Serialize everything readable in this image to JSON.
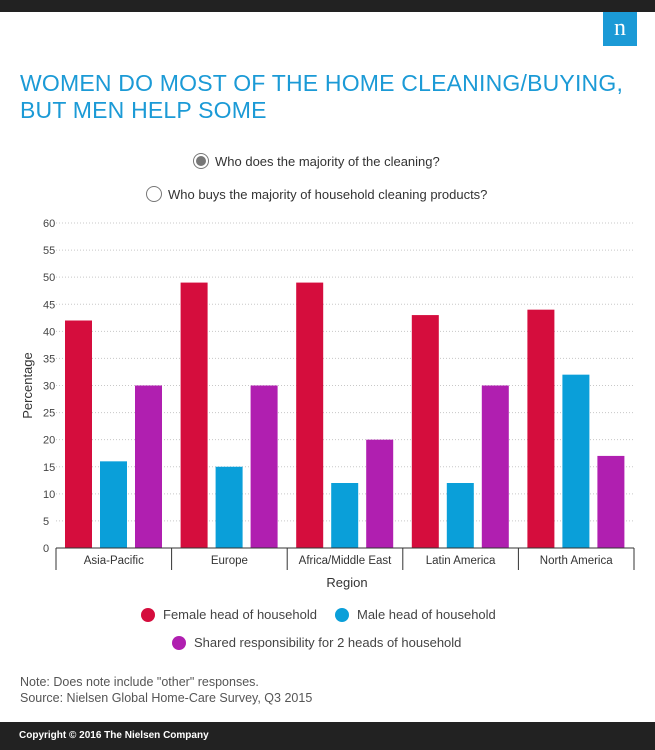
{
  "brand": {
    "logo_letter": "n",
    "color": "#1b9ad6"
  },
  "title": "WOMEN DO MOST OF THE HOME CLEANING/BUYING, BUT MEN HELP SOME",
  "toggle": {
    "options": [
      "Who does the majority of the cleaning?",
      "Who buys the majority of household cleaning products?"
    ],
    "selected_index": 0
  },
  "chart_data": {
    "type": "bar",
    "categories": [
      "Asia-Pacific",
      "Europe",
      "Africa/Middle East",
      "Latin America",
      "North America"
    ],
    "series": [
      {
        "name": "Female head of household",
        "color": "#d50d3d",
        "values": [
          42,
          49,
          49,
          43,
          44
        ]
      },
      {
        "name": "Male head of household",
        "color": "#0a9fd9",
        "values": [
          16,
          15,
          12,
          12,
          32
        ]
      },
      {
        "name": "Shared responsibility for 2 heads of household",
        "color": "#b01fb0",
        "values": [
          30,
          30,
          20,
          30,
          17
        ]
      }
    ],
    "xlabel": "Region",
    "ylabel": "Percentage",
    "ylim": [
      0,
      60
    ],
    "yticks": [
      0,
      5,
      10,
      15,
      20,
      25,
      30,
      35,
      40,
      45,
      50,
      55,
      60
    ],
    "grid": true,
    "legend_position": "bottom"
  },
  "note": "Note: Does note include \"other\" responses.",
  "source": "Source: Nielsen Global Home-Care Survey, Q3 2015",
  "footer": "Copyright © 2016 The Nielsen Company"
}
